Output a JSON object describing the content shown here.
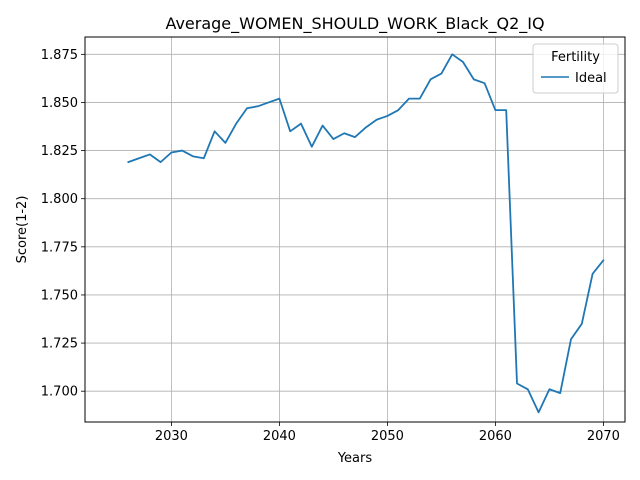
{
  "chart_data": {
    "type": "line",
    "title": "Average_WOMEN_SHOULD_WORK_Black_Q2_IQ",
    "xlabel": "Years",
    "ylabel": "Score(1-2)",
    "xlim": [
      2022,
      2072
    ],
    "ylim": [
      1.684,
      1.884
    ],
    "xticks": [
      2030,
      2040,
      2050,
      2060,
      2070
    ],
    "yticks": [
      1.7,
      1.725,
      1.75,
      1.775,
      1.8,
      1.825,
      1.85,
      1.875
    ],
    "grid": true,
    "legend": {
      "title": "Fertility",
      "placement": "top-right"
    },
    "series": [
      {
        "name": "Ideal",
        "color": "#1f77b4",
        "x": [
          2026,
          2027,
          2028,
          2029,
          2030,
          2031,
          2032,
          2033,
          2034,
          2035,
          2036,
          2037,
          2038,
          2039,
          2040,
          2041,
          2042,
          2043,
          2044,
          2045,
          2046,
          2047,
          2048,
          2049,
          2050,
          2051,
          2052,
          2053,
          2054,
          2055,
          2056,
          2057,
          2058,
          2059,
          2060,
          2061,
          2062,
          2063,
          2064,
          2065,
          2066,
          2067,
          2068,
          2069,
          2070
        ],
        "y": [
          1.819,
          1.821,
          1.823,
          1.819,
          1.824,
          1.825,
          1.822,
          1.821,
          1.835,
          1.829,
          1.839,
          1.847,
          1.848,
          1.85,
          1.852,
          1.835,
          1.839,
          1.827,
          1.838,
          1.831,
          1.834,
          1.832,
          1.837,
          1.841,
          1.843,
          1.846,
          1.852,
          1.852,
          1.862,
          1.865,
          1.875,
          1.871,
          1.862,
          1.86,
          1.846,
          1.846,
          1.704,
          1.701,
          1.689,
          1.701,
          1.699,
          1.727,
          1.735,
          1.761,
          1.768
        ]
      }
    ]
  }
}
